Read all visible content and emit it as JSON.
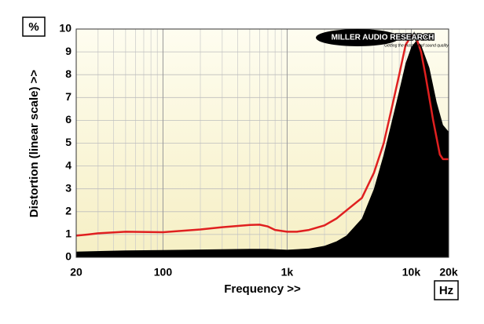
{
  "chart_data": {
    "type": "area-line",
    "unit_label": "%",
    "x_unit_label": "Hz",
    "ylabel": "Distortion (linear scale) >>",
    "xlabel": "Frequency >>",
    "logo": {
      "title": "MILLER AUDIO RESEARCH",
      "tagline": "Getting the most out of sound quality"
    },
    "xscale": "log",
    "grid": true,
    "xlim": [
      20,
      20000
    ],
    "ylim": [
      0,
      10
    ],
    "xticks": [
      20,
      100,
      {
        "value": 1000,
        "label": "1k"
      },
      {
        "value": 10000,
        "label": "10k"
      },
      {
        "value": 20000,
        "label": "20k"
      }
    ],
    "yticks": [
      0,
      1,
      2,
      3,
      4,
      5,
      6,
      7,
      8,
      9,
      10
    ],
    "series": [
      {
        "kind": "area",
        "color": "#000000",
        "x": [
          20,
          50,
          100,
          300,
          500,
          700,
          1000,
          1500,
          2000,
          2500,
          3000,
          4000,
          5000,
          6000,
          7000,
          8000,
          9000,
          10000,
          11000,
          12000,
          14000,
          16000,
          18000,
          20000
        ],
        "values": [
          0.25,
          0.3,
          0.32,
          0.35,
          0.37,
          0.37,
          0.33,
          0.38,
          0.5,
          0.7,
          0.95,
          1.7,
          3.0,
          4.5,
          6.0,
          7.3,
          8.5,
          9.2,
          9.5,
          9.3,
          8.3,
          6.8,
          5.8,
          5.5
        ]
      },
      {
        "kind": "line",
        "color": "#e02020",
        "x": [
          20,
          25,
          30,
          50,
          100,
          200,
          300,
          500,
          600,
          700,
          800,
          1000,
          1200,
          1500,
          2000,
          2500,
          3000,
          4000,
          5000,
          6000,
          7000,
          8000,
          9000,
          10000,
          11000,
          12000,
          13000,
          15000,
          17000,
          18000,
          20000
        ],
        "values": [
          0.95,
          1.0,
          1.05,
          1.12,
          1.1,
          1.22,
          1.32,
          1.42,
          1.43,
          1.35,
          1.2,
          1.12,
          1.12,
          1.2,
          1.4,
          1.7,
          2.05,
          2.6,
          3.7,
          5.0,
          6.6,
          8.0,
          9.3,
          9.7,
          9.6,
          9.0,
          8.0,
          6.0,
          4.5,
          4.3,
          4.3
        ]
      }
    ]
  }
}
